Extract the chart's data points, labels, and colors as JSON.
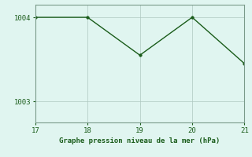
{
  "x": [
    17,
    18,
    19,
    20,
    21
  ],
  "y": [
    1004.0,
    1004.0,
    1003.55,
    1004.0,
    1003.45
  ],
  "line_color": "#1a5c1a",
  "marker_color": "#1a5c1a",
  "bg_color": "#e0f5f0",
  "grid_color": "#aec8c0",
  "axis_color": "#7a9a8a",
  "xlabel": "Graphe pression niveau de la mer (hPa)",
  "xlabel_color": "#1a5c1a",
  "tick_color": "#1a5c1a",
  "xlim": [
    17,
    21
  ],
  "ylim": [
    1002.75,
    1004.15
  ],
  "yticks": [
    1003,
    1004
  ],
  "xticks": [
    17,
    18,
    19,
    20,
    21
  ],
  "figsize": [
    3.2,
    2.0
  ],
  "dpi": 100
}
